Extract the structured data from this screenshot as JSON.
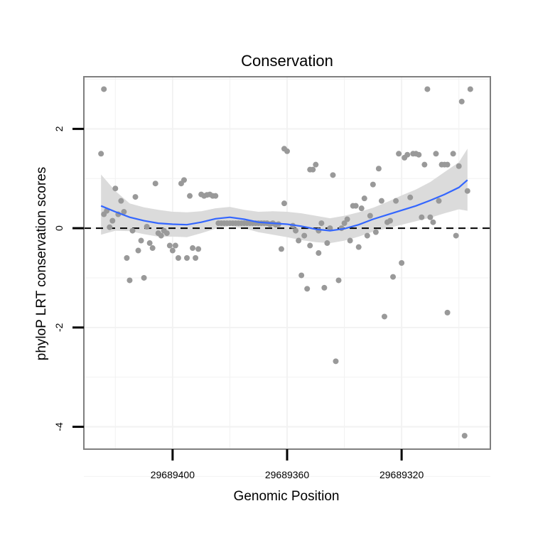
{
  "chart_data": {
    "type": "scatter",
    "title": "Conservation",
    "xlabel": "Genomic Position",
    "ylabel": "phyloP LRT conservation scores",
    "x_reversed": true,
    "xlim": [
      29689431,
      29689289
    ],
    "ylim": [
      -4.45,
      3.05
    ],
    "x_ticks": [
      29689400,
      29689360,
      29689320
    ],
    "x_tick_labels": [
      "29689400",
      "29689360",
      "29689320"
    ],
    "y_ticks": [
      -4,
      -2,
      0,
      2
    ],
    "y_tick_labels": [
      "-4",
      "-2",
      "0",
      "2"
    ],
    "reference_line": 0,
    "grid": true,
    "legend": "none",
    "colors": {
      "points": "#999999",
      "smooth": "#3366ff",
      "band": "#d9d9d9",
      "grid": "#f2f2f2",
      "frame": "#7f7f7f"
    },
    "points": [
      [
        29689425,
        1.5
      ],
      [
        29689424,
        2.8
      ],
      [
        29689424,
        0.28
      ],
      [
        29689423,
        0.35
      ],
      [
        29689422,
        0.02
      ],
      [
        29689421,
        0.15
      ],
      [
        29689420,
        0.8
      ],
      [
        29689419,
        0.28
      ],
      [
        29689418,
        0.55
      ],
      [
        29689417,
        0.33
      ],
      [
        29689416,
        -0.6
      ],
      [
        29689415,
        -1.05
      ],
      [
        29689414,
        -0.05
      ],
      [
        29689413,
        0.63
      ],
      [
        29689412,
        -0.45
      ],
      [
        29689411,
        -0.25
      ],
      [
        29689410,
        -1.0
      ],
      [
        29689409,
        0.03
      ],
      [
        29689408,
        -0.3
      ],
      [
        29689407,
        -0.4
      ],
      [
        29689406,
        0.9
      ],
      [
        29689405,
        -0.1
      ],
      [
        29689404,
        -0.15
      ],
      [
        29689403,
        -0.05
      ],
      [
        29689402,
        -0.1
      ],
      [
        29689401,
        -0.35
      ],
      [
        29689400,
        -0.45
      ],
      [
        29689399,
        -0.35
      ],
      [
        29689398,
        -0.6
      ],
      [
        29689397,
        0.9
      ],
      [
        29689396,
        0.97
      ],
      [
        29689395,
        -0.6
      ],
      [
        29689394,
        0.65
      ],
      [
        29689393,
        -0.4
      ],
      [
        29689392,
        -0.6
      ],
      [
        29689391,
        -0.42
      ],
      [
        29689390,
        0.68
      ],
      [
        29689389,
        0.65
      ],
      [
        29689388,
        0.67
      ],
      [
        29689387,
        0.68
      ],
      [
        29689386,
        0.65
      ],
      [
        29689385,
        0.65
      ],
      [
        29689384,
        0.1
      ],
      [
        29689383,
        0.1
      ],
      [
        29689382,
        0.1
      ],
      [
        29689381,
        0.1
      ],
      [
        29689380,
        0.1
      ],
      [
        29689379,
        0.1
      ],
      [
        29689378,
        0.1
      ],
      [
        29689377,
        0.1
      ],
      [
        29689376,
        0.1
      ],
      [
        29689375,
        0.1
      ],
      [
        29689374,
        0.1
      ],
      [
        29689373,
        0.1
      ],
      [
        29689372,
        0.1
      ],
      [
        29689371,
        0.1
      ],
      [
        29689370,
        0.1
      ],
      [
        29689369,
        0.1
      ],
      [
        29689368,
        0.1
      ],
      [
        29689367,
        0.1
      ],
      [
        29689366,
        0.08
      ],
      [
        29689365,
        0.1
      ],
      [
        29689364,
        0.07
      ],
      [
        29689363,
        0.08
      ],
      [
        29689362,
        -0.42
      ],
      [
        29689361,
        0.5
      ],
      [
        29689361,
        1.6
      ],
      [
        29689360,
        1.55
      ],
      [
        29689358,
        0.05
      ],
      [
        29689357,
        -0.05
      ],
      [
        29689356,
        -0.25
      ],
      [
        29689355,
        -0.95
      ],
      [
        29689354,
        -0.15
      ],
      [
        29689353,
        -1.22
      ],
      [
        29689352,
        -0.35
      ],
      [
        29689352,
        1.18
      ],
      [
        29689351,
        1.18
      ],
      [
        29689350,
        1.28
      ],
      [
        29689349,
        -0.05
      ],
      [
        29689349,
        -0.5
      ],
      [
        29689348,
        0.1
      ],
      [
        29689347,
        -1.2
      ],
      [
        29689346,
        -0.3
      ],
      [
        29689345,
        0.0
      ],
      [
        29689344,
        1.07
      ],
      [
        29689343,
        -2.68
      ],
      [
        29689342,
        -1.05
      ],
      [
        29689341,
        0.0
      ],
      [
        29689340,
        0.1
      ],
      [
        29689339,
        0.18
      ],
      [
        29689338,
        -0.25
      ],
      [
        29689337,
        0.45
      ],
      [
        29689336,
        0.45
      ],
      [
        29689335,
        -0.38
      ],
      [
        29689334,
        0.4
      ],
      [
        29689333,
        0.6
      ],
      [
        29689332,
        -0.15
      ],
      [
        29689331,
        0.25
      ],
      [
        29689330,
        0.88
      ],
      [
        29689329,
        -0.08
      ],
      [
        29689328,
        1.2
      ],
      [
        29689327,
        0.55
      ],
      [
        29689326,
        -1.78
      ],
      [
        29689325,
        0.12
      ],
      [
        29689324,
        0.15
      ],
      [
        29689323,
        -0.98
      ],
      [
        29689322,
        0.55
      ],
      [
        29689321,
        1.5
      ],
      [
        29689320,
        -0.7
      ],
      [
        29689319,
        1.42
      ],
      [
        29689318,
        1.48
      ],
      [
        29689317,
        0.62
      ],
      [
        29689316,
        1.5
      ],
      [
        29689315,
        1.5
      ],
      [
        29689314,
        1.48
      ],
      [
        29689313,
        0.22
      ],
      [
        29689312,
        1.28
      ],
      [
        29689311,
        2.8
      ],
      [
        29689310,
        0.22
      ],
      [
        29689309,
        0.12
      ],
      [
        29689308,
        1.5
      ],
      [
        29689307,
        0.55
      ],
      [
        29689306,
        1.28
      ],
      [
        29689305,
        1.28
      ],
      [
        29689304,
        -1.7
      ],
      [
        29689304,
        1.28
      ],
      [
        29689302,
        1.5
      ],
      [
        29689301,
        -0.15
      ],
      [
        29689300,
        1.25
      ],
      [
        29689299,
        2.55
      ],
      [
        29689298,
        -4.18
      ],
      [
        29689297,
        0.75
      ],
      [
        29689296,
        2.8
      ]
    ],
    "smooth": {
      "x": [
        29689425,
        29689420,
        29689415,
        29689410,
        29689405,
        29689400,
        29689395,
        29689390,
        29689385,
        29689380,
        29689375,
        29689370,
        29689365,
        29689360,
        29689355,
        29689350,
        29689345,
        29689340,
        29689335,
        29689330,
        29689325,
        29689320,
        29689315,
        29689310,
        29689305,
        29689300,
        29689297
      ],
      "y": [
        0.45,
        0.33,
        0.22,
        0.15,
        0.1,
        0.08,
        0.07,
        0.12,
        0.19,
        0.22,
        0.18,
        0.12,
        0.1,
        0.08,
        0.04,
        -0.02,
        -0.05,
        -0.01,
        0.07,
        0.18,
        0.27,
        0.36,
        0.45,
        0.56,
        0.68,
        0.82,
        0.97
      ],
      "lower": [
        -0.13,
        -0.05,
        -0.06,
        -0.12,
        -0.17,
        -0.17,
        -0.18,
        -0.1,
        -0.01,
        0.04,
        0.0,
        -0.08,
        -0.13,
        -0.18,
        -0.24,
        -0.28,
        -0.3,
        -0.25,
        -0.17,
        -0.07,
        0.0,
        0.07,
        0.14,
        0.21,
        0.3,
        0.38,
        0.35
      ],
      "upper": [
        1.08,
        0.75,
        0.5,
        0.42,
        0.37,
        0.33,
        0.32,
        0.34,
        0.4,
        0.43,
        0.37,
        0.33,
        0.34,
        0.33,
        0.3,
        0.25,
        0.2,
        0.25,
        0.32,
        0.41,
        0.53,
        0.66,
        0.78,
        0.93,
        1.13,
        1.33,
        1.6
      ]
    }
  }
}
